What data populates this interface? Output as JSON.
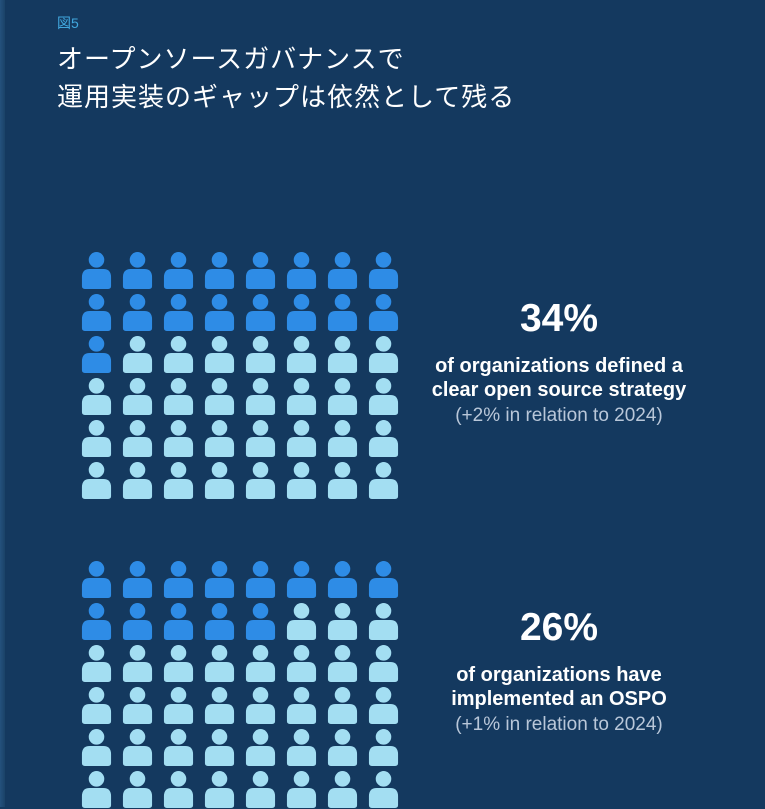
{
  "page": {
    "background_color": "#14395f",
    "left_edge_color": "#1f4b76"
  },
  "header": {
    "figure_label": "図5",
    "figure_label_color": "#41a7de",
    "title_line1": "オープンソースガバナンスで",
    "title_line2": "運用実装のギャップは依然として残る"
  },
  "chart_data": {
    "type": "pictogram",
    "figure_label": "図5",
    "title": "オープンソースガバナンスで運用実装のギャップは依然として残る",
    "charts": [
      {
        "type": "pictogram",
        "value_pct": 34,
        "value_label": "34%",
        "desc_line1": "of organizations defined a",
        "desc_line2": "clear open source strategy",
        "note": "(+2% in relation to 2024)",
        "change_vs_2024_pct": 2,
        "grid": {
          "rows": 6,
          "cols": 8
        },
        "icons_total": 48,
        "icons_highlighted": 17,
        "highlight_color": "#2e8ce6",
        "base_color": "#a3def2"
      },
      {
        "type": "pictogram",
        "value_pct": 26,
        "value_label": "26%",
        "desc_line1": "of organizations have",
        "desc_line2": "implemented an OSPO",
        "note": "(+1% in relation to 2024)",
        "change_vs_2024_pct": 1,
        "grid": {
          "rows": 6,
          "cols": 8
        },
        "icons_total": 48,
        "icons_highlighted": 13,
        "highlight_color": "#2e8ce6",
        "base_color": "#a3def2"
      }
    ],
    "note_text_color": "#b9c7d9",
    "value_text_color": "#ffffff",
    "legend_position": "none",
    "grid_lines": false
  }
}
